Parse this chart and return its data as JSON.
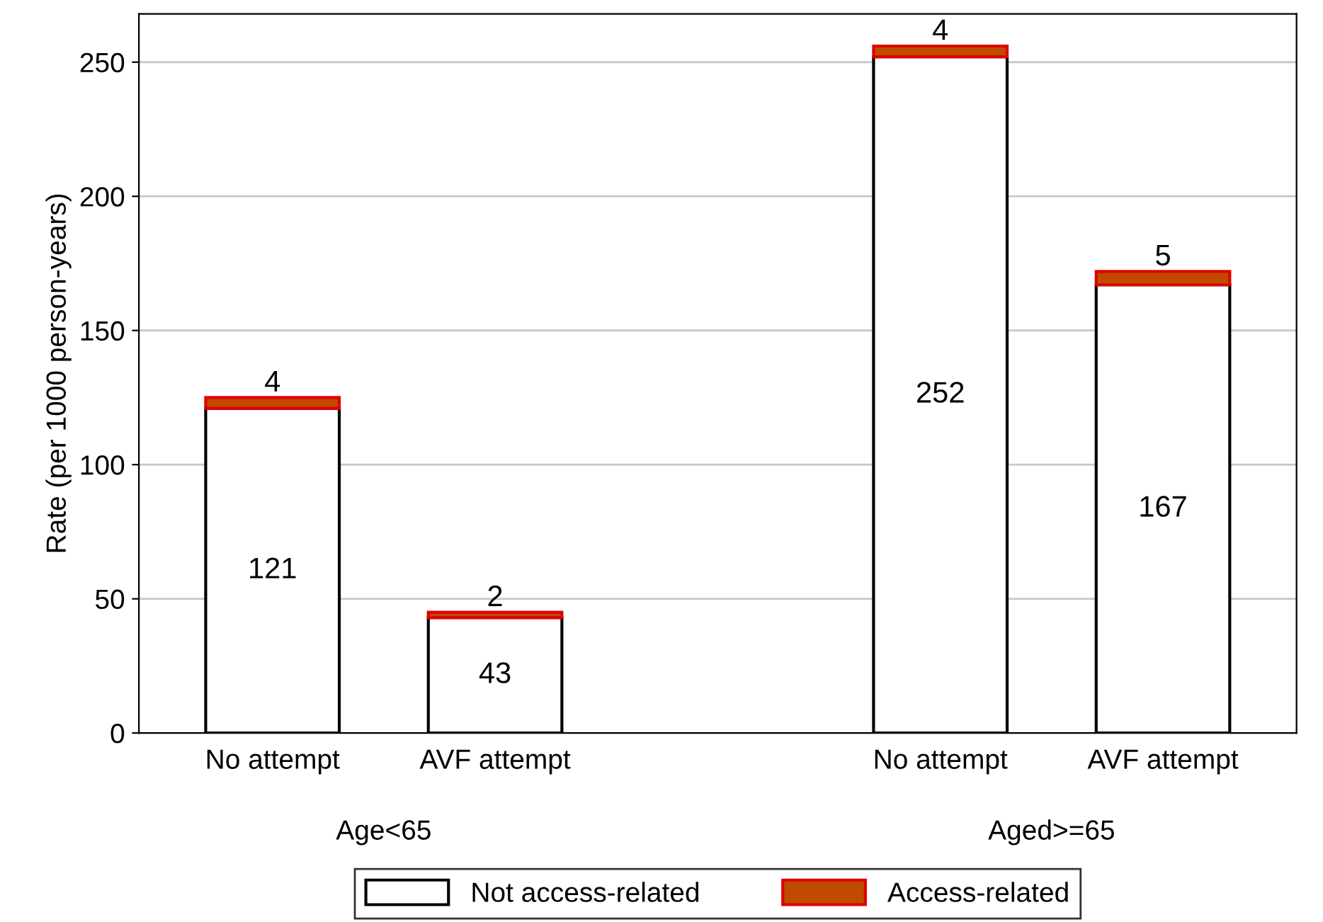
{
  "chart_data": {
    "type": "bar",
    "ylabel": "Rate (per 1000 person-years)",
    "categories": [
      "No attempt",
      "AVF attempt",
      null,
      "No attempt",
      "AVF attempt"
    ],
    "stacked": true,
    "series": [
      {
        "name": "Not access-related",
        "color": "#ffffff",
        "values": [
          121,
          43,
          null,
          252,
          167
        ]
      },
      {
        "name": "Access-related",
        "color": "#c04a00",
        "values": [
          4,
          2,
          null,
          4,
          5
        ]
      }
    ],
    "ylim": [
      0,
      268
    ],
    "yticks": [
      0,
      50,
      100,
      150,
      200,
      250
    ],
    "grid": "y",
    "legend": "bottom",
    "data_labels": true,
    "annotations": [
      "Age<65",
      "Aged>=65"
    ]
  }
}
